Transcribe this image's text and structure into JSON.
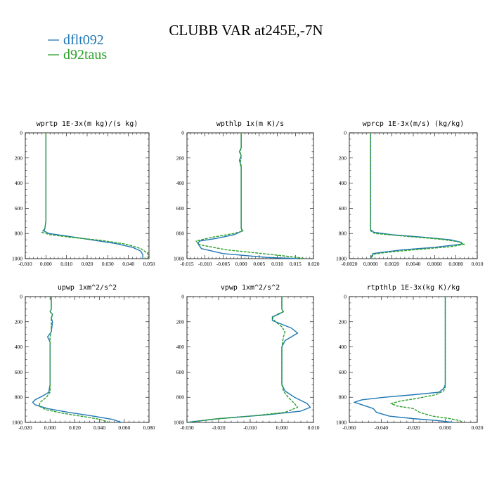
{
  "figure": {
    "title": "CLUBB VAR at245E,-7N",
    "legend": [
      {
        "label": "dflt092",
        "color": "#1f77b4",
        "dash": "solid"
      },
      {
        "label": "d92taus",
        "color": "#2ca02c",
        "dash": "dashed"
      }
    ]
  },
  "chart_data": [
    {
      "type": "line",
      "title": "wprtp  1E-3x(m kg)/(s kg)",
      "xlim": [
        -0.01,
        0.05
      ],
      "xticks": [
        "-0.010",
        "0.000",
        "0.010",
        "0.020",
        "0.030",
        "0.040",
        "0.050"
      ],
      "ylim": [
        1000,
        0
      ],
      "yticks": [
        "0",
        "200",
        "400",
        "600",
        "800",
        "1000"
      ],
      "series": [
        {
          "name": "dflt092",
          "points": [
            [
              0,
              0
            ],
            [
              0,
              200
            ],
            [
              0,
              400
            ],
            [
              0,
              600
            ],
            [
              0,
              700
            ],
            [
              -0.0005,
              760
            ],
            [
              -0.001,
              780
            ],
            [
              0.0015,
              800
            ],
            [
              0.01,
              820
            ],
            [
              0.022,
              850
            ],
            [
              0.034,
              880
            ],
            [
              0.042,
              910
            ],
            [
              0.046,
              940
            ],
            [
              0.047,
              970
            ],
            [
              0.047,
              1000
            ]
          ]
        },
        {
          "name": "d92taus",
          "points": [
            [
              0,
              0
            ],
            [
              0,
              200
            ],
            [
              0,
              400
            ],
            [
              0,
              600
            ],
            [
              0,
              700
            ],
            [
              -0.0005,
              760
            ],
            [
              -0.002,
              790
            ],
            [
              0.002,
              810
            ],
            [
              0.012,
              830
            ],
            [
              0.027,
              855
            ],
            [
              0.039,
              885
            ],
            [
              0.046,
              920
            ],
            [
              0.0495,
              960
            ],
            [
              0.0495,
              1000
            ]
          ]
        }
      ]
    },
    {
      "type": "line",
      "title": "wpthlp  1x(m K)/s",
      "xlim": [
        -0.015,
        0.02
      ],
      "xticks": [
        "-0.015",
        "-0.010",
        "-0.005",
        "0.000",
        "0.005",
        "0.010",
        "0.015",
        "0.020"
      ],
      "ylim": [
        1000,
        0
      ],
      "yticks": [
        "0",
        "200",
        "400",
        "600",
        "800",
        "1000"
      ],
      "series": [
        {
          "name": "dflt092",
          "points": [
            [
              0,
              0
            ],
            [
              0,
              120
            ],
            [
              -0.0005,
              150
            ],
            [
              0,
              180
            ],
            [
              -0.0005,
              220
            ],
            [
              0,
              260
            ],
            [
              0,
              400
            ],
            [
              0,
              600
            ],
            [
              0,
              760
            ],
            [
              0.0003,
              780
            ],
            [
              -0.002,
              810
            ],
            [
              -0.007,
              840
            ],
            [
              -0.0115,
              860
            ],
            [
              -0.012,
              880
            ],
            [
              -0.011,
              920
            ],
            [
              -0.005,
              960
            ],
            [
              0.007,
              990
            ],
            [
              0.016,
              1000
            ]
          ]
        },
        {
          "name": "d92taus",
          "points": [
            [
              0,
              0
            ],
            [
              0,
              120
            ],
            [
              -0.0003,
              150
            ],
            [
              0,
              200
            ],
            [
              -0.0003,
              240
            ],
            [
              0,
              280
            ],
            [
              0,
              400
            ],
            [
              0,
              600
            ],
            [
              0,
              760
            ],
            [
              0.0005,
              780
            ],
            [
              -0.002,
              800
            ],
            [
              -0.008,
              830
            ],
            [
              -0.0125,
              860
            ],
            [
              -0.0115,
              890
            ],
            [
              -0.004,
              930
            ],
            [
              0.006,
              960
            ],
            [
              0.014,
              985
            ],
            [
              0.018,
              1000
            ]
          ]
        }
      ]
    },
    {
      "type": "line",
      "title": "wprcp  1E-3x(m/s) (kg/kg)",
      "xlim": [
        -0.002,
        0.01
      ],
      "xticks": [
        "-0.0020",
        "0.0000",
        "0.0020",
        "0.0040",
        "0.0060",
        "0.0080",
        "0.010"
      ],
      "ylim": [
        1000,
        0
      ],
      "yticks": [
        "0",
        "200",
        "400",
        "600",
        "800",
        "1000"
      ],
      "series": [
        {
          "name": "dflt092",
          "points": [
            [
              0,
              0
            ],
            [
              0,
              200
            ],
            [
              0,
              400
            ],
            [
              0,
              600
            ],
            [
              0,
              770
            ],
            [
              0.0003,
              790
            ],
            [
              0.002,
              810
            ],
            [
              0.005,
              830
            ],
            [
              0.0075,
              850
            ],
            [
              0.0085,
              870
            ],
            [
              0.0085,
              885
            ],
            [
              0.006,
              910
            ],
            [
              0.003,
              930
            ],
            [
              0.001,
              950
            ],
            [
              0.0002,
              960
            ],
            [
              0,
              1000
            ]
          ]
        },
        {
          "name": "d92taus",
          "points": [
            [
              0,
              0
            ],
            [
              0,
              200
            ],
            [
              0,
              400
            ],
            [
              0,
              600
            ],
            [
              0,
              780
            ],
            [
              0.0004,
              800
            ],
            [
              0.003,
              820
            ],
            [
              0.0065,
              845
            ],
            [
              0.0082,
              865
            ],
            [
              0.0088,
              885
            ],
            [
              0.0075,
              905
            ],
            [
              0.004,
              930
            ],
            [
              0.0015,
              950
            ],
            [
              0.0003,
              965
            ],
            [
              0,
              1000
            ]
          ]
        }
      ]
    },
    {
      "type": "line",
      "title": "upwp  1xm^2/s^2",
      "xlim": [
        -0.02,
        0.08
      ],
      "xticks": [
        "-0.020",
        "0.000",
        "0.020",
        "0.040",
        "0.060",
        "0.080"
      ],
      "ylim": [
        1000,
        0
      ],
      "yticks": [
        "0",
        "200",
        "400",
        "600",
        "800",
        "1000"
      ],
      "series": [
        {
          "name": "dflt092",
          "points": [
            [
              0.001,
              0
            ],
            [
              0.001,
              100
            ],
            [
              0,
              120
            ],
            [
              0.002,
              140
            ],
            [
              0.001,
              170
            ],
            [
              0.002,
              200
            ],
            [
              0.001,
              280
            ],
            [
              -0.002,
              320
            ],
            [
              0,
              360
            ],
            [
              0,
              500
            ],
            [
              0,
              700
            ],
            [
              -0.001,
              760
            ],
            [
              -0.006,
              790
            ],
            [
              -0.012,
              820
            ],
            [
              -0.014,
              840
            ],
            [
              -0.012,
              860
            ],
            [
              -0.002,
              890
            ],
            [
              0.015,
              920
            ],
            [
              0.035,
              950
            ],
            [
              0.05,
              975
            ],
            [
              0.058,
              1000
            ]
          ]
        },
        {
          "name": "d92taus",
          "points": [
            [
              0.001,
              0
            ],
            [
              0.001,
              100
            ],
            [
              0,
              120
            ],
            [
              0.002,
              140
            ],
            [
              0.001,
              180
            ],
            [
              0.001,
              280
            ],
            [
              0,
              320
            ],
            [
              0,
              360
            ],
            [
              0,
              500
            ],
            [
              0,
              700
            ],
            [
              0,
              760
            ],
            [
              -0.003,
              800
            ],
            [
              -0.008,
              840
            ],
            [
              -0.009,
              870
            ],
            [
              -0.003,
              900
            ],
            [
              0.012,
              930
            ],
            [
              0.028,
              955
            ],
            [
              0.04,
              975
            ],
            [
              0.048,
              1000
            ]
          ]
        }
      ]
    },
    {
      "type": "line",
      "title": "vpwp  1xm^2/s^2",
      "xlim": [
        -0.03,
        0.01
      ],
      "xticks": [
        "-0.030",
        "-0.020",
        "-0.010",
        "0.000",
        "0.010"
      ],
      "ylim": [
        1000,
        0
      ],
      "yticks": [
        "0",
        "200",
        "400",
        "600",
        "800",
        "1000"
      ],
      "series": [
        {
          "name": "dflt092",
          "points": [
            [
              0,
              0
            ],
            [
              0,
              100
            ],
            [
              0.0005,
              120
            ],
            [
              -0.001,
              140
            ],
            [
              -0.003,
              160
            ],
            [
              -0.003,
              190
            ],
            [
              0,
              220
            ],
            [
              0.003,
              250
            ],
            [
              0.005,
              290
            ],
            [
              0.003,
              320
            ],
            [
              0.001,
              350
            ],
            [
              0,
              400
            ],
            [
              0,
              500
            ],
            [
              0,
              600
            ],
            [
              0,
              700
            ],
            [
              0.001,
              750
            ],
            [
              0.004,
              800
            ],
            [
              0.008,
              850
            ],
            [
              0.009,
              880
            ],
            [
              0.006,
              910
            ],
            [
              -0.005,
              940
            ],
            [
              -0.02,
              970
            ],
            [
              -0.03,
              1000
            ]
          ]
        },
        {
          "name": "d92taus",
          "points": [
            [
              0,
              0
            ],
            [
              0,
              100
            ],
            [
              0.0005,
              120
            ],
            [
              -0.0015,
              140
            ],
            [
              -0.003,
              170
            ],
            [
              -0.002,
              200
            ],
            [
              0,
              240
            ],
            [
              0.001,
              280
            ],
            [
              0.0005,
              320
            ],
            [
              0,
              400
            ],
            [
              0,
              600
            ],
            [
              0,
              700
            ],
            [
              0.0005,
              750
            ],
            [
              0.002,
              800
            ],
            [
              0.004,
              850
            ],
            [
              0.005,
              880
            ],
            [
              0.001,
              920
            ],
            [
              -0.01,
              950
            ],
            [
              -0.022,
              975
            ],
            [
              -0.03,
              1000
            ]
          ]
        }
      ]
    },
    {
      "type": "line",
      "title": "rtpthlp  1E-3x(kg K)/kg",
      "xlim": [
        -0.06,
        0.02
      ],
      "xticks": [
        "-0.060",
        "-0.040",
        "-0.020",
        "0.000",
        "0.020"
      ],
      "ylim": [
        1000,
        0
      ],
      "yticks": [
        "0",
        "200",
        "400",
        "600",
        "800",
        "1000"
      ],
      "series": [
        {
          "name": "dflt092",
          "points": [
            [
              0,
              0
            ],
            [
              0,
              200
            ],
            [
              0,
              400
            ],
            [
              0,
              600
            ],
            [
              0,
              700
            ],
            [
              -0.001,
              730
            ],
            [
              -0.004,
              760
            ],
            [
              -0.02,
              780
            ],
            [
              -0.038,
              800
            ],
            [
              -0.052,
              820
            ],
            [
              -0.057,
              840
            ],
            [
              -0.052,
              860
            ],
            [
              -0.045,
              890
            ],
            [
              -0.043,
              920
            ],
            [
              -0.035,
              950
            ],
            [
              -0.02,
              970
            ],
            [
              -0.005,
              985
            ],
            [
              0.005,
              1000
            ]
          ]
        },
        {
          "name": "d92taus",
          "points": [
            [
              0,
              0
            ],
            [
              0,
              200
            ],
            [
              0,
              400
            ],
            [
              0,
              600
            ],
            [
              0,
              720
            ],
            [
              -0.001,
              750
            ],
            [
              -0.006,
              780
            ],
            [
              -0.018,
              810
            ],
            [
              -0.028,
              830
            ],
            [
              -0.034,
              850
            ],
            [
              -0.03,
              870
            ],
            [
              -0.02,
              890
            ],
            [
              -0.016,
              920
            ],
            [
              -0.008,
              950
            ],
            [
              0.003,
              970
            ],
            [
              0.009,
              985
            ],
            [
              0.011,
              1000
            ]
          ]
        }
      ]
    }
  ]
}
